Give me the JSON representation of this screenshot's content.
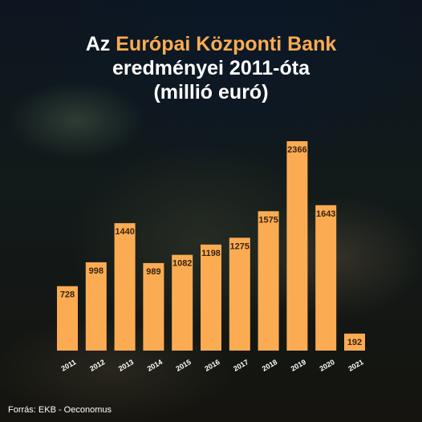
{
  "title": {
    "line1_prefix": "Az",
    "line1_accent": "Európai Központi Bank",
    "line2": "eredményei 2011-óta",
    "line3": "(millió euró)"
  },
  "source": "Forrás: EKB - Oeconomus",
  "colors": {
    "bar": "#fbac52",
    "accent": "#fbac52",
    "label": "#3a2210",
    "tick": "#ffffff"
  },
  "chart_data": {
    "type": "bar",
    "title": "Az Európai Központi Bank eredményei 2011-óta (millió euró)",
    "categories": [
      "2011",
      "2012",
      "2013",
      "2014",
      "2015",
      "2016",
      "2017",
      "2018",
      "2019",
      "2020",
      "2021"
    ],
    "values": [
      728,
      998,
      1440,
      989,
      1082,
      1198,
      1275,
      1575,
      2366,
      1643,
      192
    ],
    "data_labels": [
      "728",
      "998",
      "1440",
      "989",
      "1082",
      "1198",
      "1275",
      "1575",
      "2366",
      "1643",
      "192"
    ],
    "xlabel": "",
    "ylabel": "",
    "ylim": [
      0,
      2366
    ],
    "grid": false,
    "legend": "none"
  }
}
